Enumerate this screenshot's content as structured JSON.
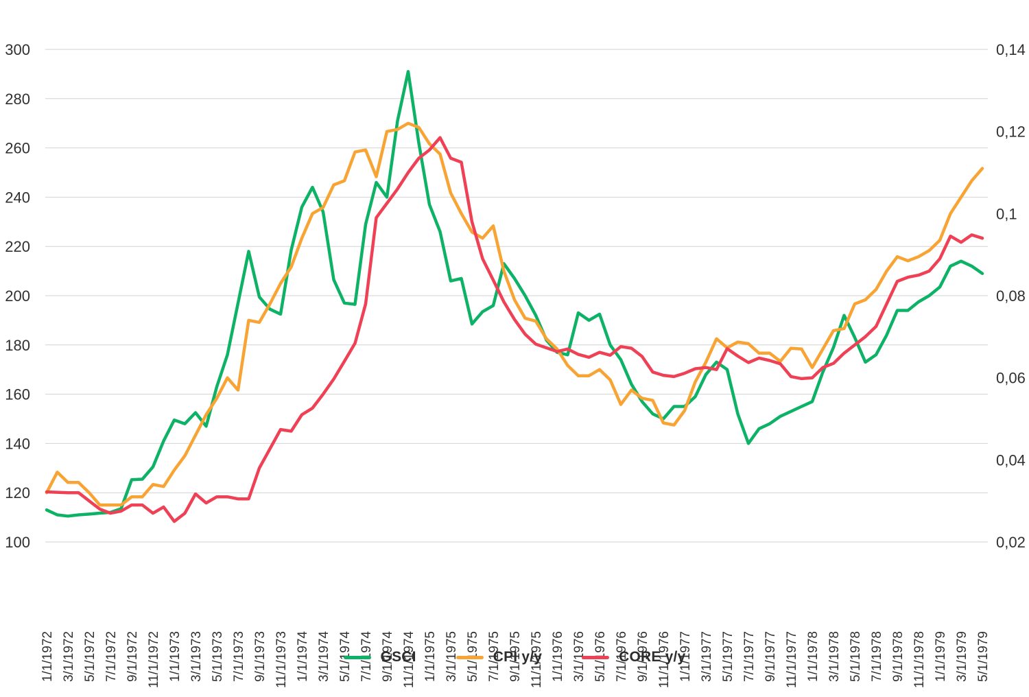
{
  "chart_data": {
    "type": "line",
    "title": "",
    "x": {
      "start": "1/1/1972",
      "end": "5/1/1979",
      "frequency": "monthly",
      "points": 89,
      "tick_every_n_months": 2,
      "tick_labels": [
        "1/1/1972",
        "3/1/1972",
        "5/1/1972",
        "7/1/1972",
        "9/1/1972",
        "11/1/1972",
        "1/1/1973",
        "3/1/1973",
        "5/1/1973",
        "7/1/1973",
        "9/1/1973",
        "11/1/1973",
        "1/1/1974",
        "3/1/1974",
        "5/1/1974",
        "7/1/1974",
        "9/1/1974",
        "11/1/1974",
        "1/1/1975",
        "3/1/1975",
        "5/1/1975",
        "7/1/1975",
        "9/1/1975",
        "11/1/1975",
        "1/1/1976",
        "3/1/1976",
        "5/1/1976",
        "7/1/1976",
        "9/1/1976",
        "11/1/1976",
        "1/1/1977",
        "3/1/1977",
        "5/1/1977",
        "7/1/1977",
        "9/1/1977",
        "11/1/1977",
        "1/1/1978",
        "3/1/1978",
        "5/1/1978",
        "7/1/1978",
        "9/1/1978",
        "11/1/1978",
        "1/1/1979",
        "3/1/1979",
        "5/1/1979"
      ]
    },
    "y_left": {
      "min": 100,
      "max": 300,
      "step": 20,
      "tick_labels": [
        "300",
        "280",
        "260",
        "240",
        "220",
        "200",
        "180",
        "160",
        "140",
        "120",
        "100"
      ],
      "applies_to": "GSCI"
    },
    "y_right": {
      "min": 0.02,
      "max": 0.14,
      "step": 0.02,
      "tick_labels": [
        "0,14",
        "0,12",
        "0,1",
        "0,08",
        "0,06",
        "0,04",
        "0,02"
      ],
      "applies_to": "CPI y/y, CORE y/y"
    },
    "grid": "horizontal",
    "legend_position": "bottom-center",
    "gridline_color": "#d2d2d2",
    "series": [
      {
        "name": "GSCI",
        "axis": "left",
        "color": "#0EB266",
        "values": [
          113,
          111,
          110.5,
          111,
          111.3,
          111.7,
          112,
          113.5,
          125.3,
          125.5,
          130.5,
          141,
          149.5,
          148,
          152.5,
          147,
          163,
          176,
          197,
          218,
          199.5,
          194.5,
          192.5,
          218.5,
          236,
          244,
          234,
          206.5,
          197,
          196.5,
          229,
          246,
          240,
          271,
          291,
          262,
          237,
          226,
          206,
          207,
          188.5,
          193.5,
          196,
          213,
          207,
          200,
          192,
          182,
          177,
          176,
          193,
          190,
          192.5,
          180,
          174,
          164,
          157,
          152,
          150,
          155,
          155,
          159,
          168,
          173,
          170,
          152,
          140,
          146,
          148,
          151,
          153,
          155,
          157,
          169,
          179,
          192,
          183,
          173,
          176,
          184,
          194,
          194,
          197.5,
          200,
          203.5,
          212,
          214,
          212,
          209
        ]
      },
      {
        "name": "CPI y/y",
        "axis": "right",
        "color": "#F7A435",
        "values": [
          0.032,
          0.037,
          0.0345,
          0.0345,
          0.032,
          0.029,
          0.029,
          0.029,
          0.031,
          0.031,
          0.034,
          0.0335,
          0.0375,
          0.041,
          0.046,
          0.051,
          0.055,
          0.06,
          0.057,
          0.074,
          0.0735,
          0.078,
          0.083,
          0.087,
          0.094,
          0.1,
          0.1015,
          0.107,
          0.108,
          0.115,
          0.1155,
          0.109,
          0.12,
          0.1205,
          0.122,
          0.121,
          0.117,
          0.1145,
          0.105,
          0.1,
          0.0955,
          0.094,
          0.097,
          0.086,
          0.079,
          0.0745,
          0.0738,
          0.0695,
          0.067,
          0.063,
          0.0605,
          0.0605,
          0.062,
          0.0595,
          0.0535,
          0.057,
          0.055,
          0.0545,
          0.049,
          0.0485,
          0.052,
          0.059,
          0.0638,
          0.0695,
          0.0673,
          0.0687,
          0.0683,
          0.066,
          0.066,
          0.064,
          0.0672,
          0.067,
          0.0625,
          0.067,
          0.0715,
          0.072,
          0.078,
          0.079,
          0.0815,
          0.086,
          0.0895,
          0.0885,
          0.0895,
          0.091,
          0.0935,
          0.1,
          0.104,
          0.108,
          0.111
        ]
      },
      {
        "name": "CORE y/y",
        "axis": "right",
        "color": "#EF4155",
        "values": [
          0.0322,
          0.0321,
          0.032,
          0.032,
          0.03,
          0.028,
          0.027,
          0.0275,
          0.029,
          0.029,
          0.027,
          0.0285,
          0.025,
          0.027,
          0.0317,
          0.0295,
          0.031,
          0.031,
          0.0305,
          0.0305,
          0.038,
          0.0427,
          0.0474,
          0.047,
          0.051,
          0.0526,
          0.056,
          0.0597,
          0.064,
          0.0684,
          0.078,
          0.099,
          0.1025,
          0.106,
          0.11,
          0.1135,
          0.1155,
          0.1185,
          0.1135,
          0.1125,
          0.098,
          0.089,
          0.0838,
          0.0785,
          0.0742,
          0.0706,
          0.0682,
          0.0673,
          0.0664,
          0.067,
          0.0657,
          0.065,
          0.0662,
          0.0655,
          0.0676,
          0.0672,
          0.0652,
          0.0614,
          0.0606,
          0.0603,
          0.0611,
          0.0622,
          0.0625,
          0.062,
          0.0671,
          0.0653,
          0.0637,
          0.0648,
          0.0642,
          0.0634,
          0.0603,
          0.0598,
          0.06,
          0.0625,
          0.0635,
          0.066,
          0.068,
          0.07,
          0.0725,
          0.078,
          0.0835,
          0.0845,
          0.085,
          0.086,
          0.089,
          0.0945,
          0.093,
          0.0948,
          0.094
        ]
      }
    ]
  }
}
